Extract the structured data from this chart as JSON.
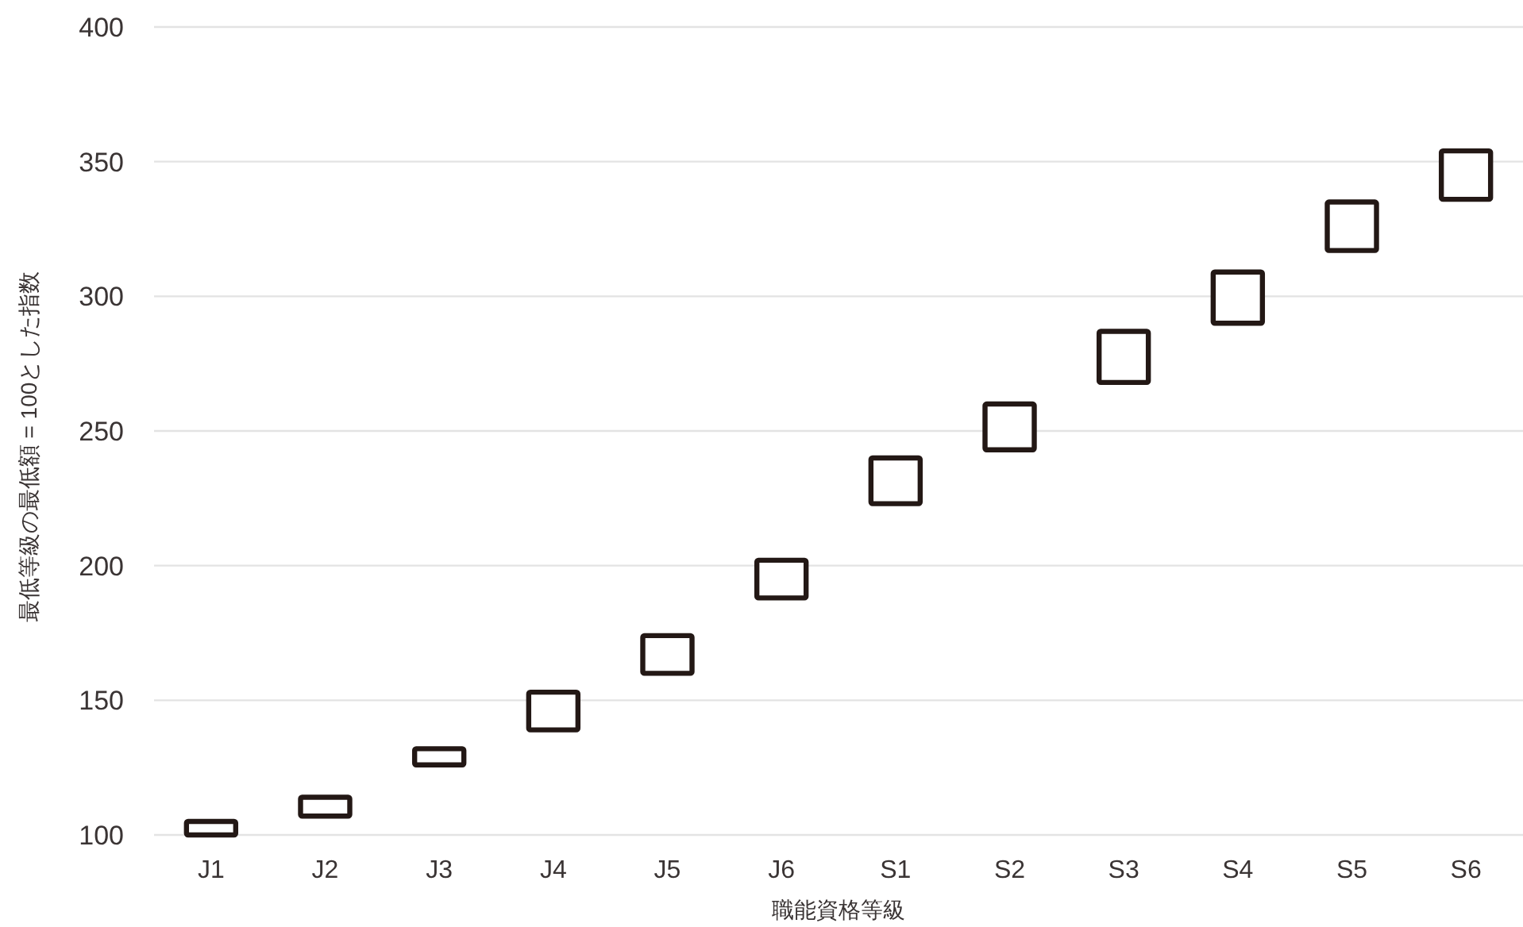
{
  "chart_data": {
    "type": "bar",
    "xlabel": "職能資格等級",
    "ylabel": "最低等級の最低額 = 100とした指数",
    "categories": [
      "J1",
      "J2",
      "J3",
      "J4",
      "J5",
      "J6",
      "S1",
      "S2",
      "S3",
      "S4",
      "S5",
      "S6"
    ],
    "base": [
      100,
      107,
      126,
      139,
      160,
      188,
      223,
      243,
      268,
      290,
      317,
      336
    ],
    "values": [
      5,
      7,
      6,
      14,
      14,
      14,
      17,
      17,
      19,
      19,
      18,
      18
    ],
    "color": "#231815",
    "ylim": [
      100,
      400
    ],
    "yticks": [
      100,
      150,
      200,
      250,
      300,
      350,
      400
    ],
    "grid": "y"
  }
}
